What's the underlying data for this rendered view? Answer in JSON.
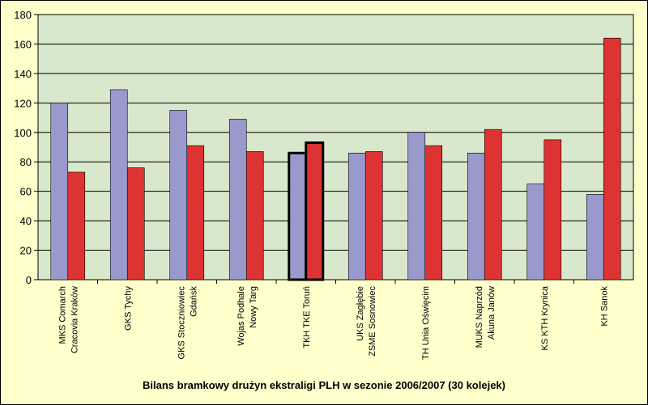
{
  "chart_data": {
    "type": "bar",
    "title": "Bilans bramkowy drużyn ekstraligi PLH w sezonie 2006/2007 (30 kolejek)",
    "categories": [
      [
        "MKS Comarch",
        "Cracovia Kraków"
      ],
      [
        "GKS Tychy"
      ],
      [
        "GKS Stoczniowiec",
        "Gdańsk"
      ],
      [
        "Wojas Podhale",
        "Nowy Targ"
      ],
      [
        "TKH TKE Toruń"
      ],
      [
        "UKS Zagłębie",
        "ZSME Sosnowiec"
      ],
      [
        "TH Unia Oświęcim"
      ],
      [
        "MUKS Naprzód",
        "Akuna Janów"
      ],
      [
        "KS KTH Krynica"
      ],
      [
        "KH Sanok"
      ]
    ],
    "series": [
      {
        "color": "#9999cc",
        "values": [
          120,
          129,
          115,
          109,
          86,
          86,
          100,
          86,
          65,
          58
        ]
      },
      {
        "color": "#dd3333",
        "values": [
          73,
          76,
          91,
          87,
          93,
          87,
          91,
          102,
          95,
          164
        ]
      }
    ],
    "highlight_category_index": 4,
    "ylim": [
      0,
      180
    ],
    "yticks": [
      0,
      20,
      40,
      60,
      80,
      100,
      120,
      140,
      160,
      180
    ],
    "grid": true,
    "plot_background": "#d8e8cc"
  }
}
